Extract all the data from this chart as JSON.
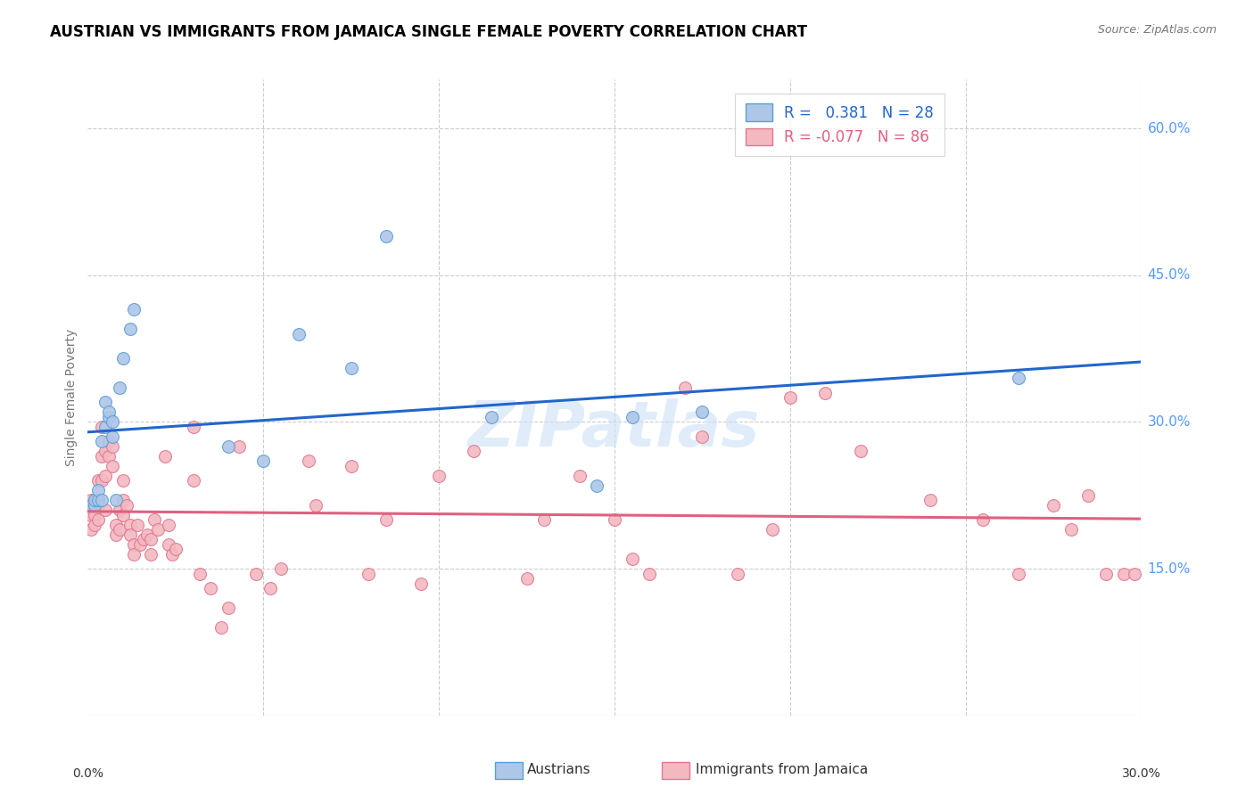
{
  "title": "AUSTRIAN VS IMMIGRANTS FROM JAMAICA SINGLE FEMALE POVERTY CORRELATION CHART",
  "source": "Source: ZipAtlas.com",
  "ylabel": "Single Female Poverty",
  "right_yticks": [
    "60.0%",
    "45.0%",
    "30.0%",
    "15.0%"
  ],
  "right_ytick_values": [
    0.6,
    0.45,
    0.3,
    0.15
  ],
  "xlim": [
    0.0,
    0.3
  ],
  "ylim": [
    0.0,
    0.65
  ],
  "color_austrians_fill": "#aec6e8",
  "color_austrians_edge": "#5a9fd4",
  "color_jamaica_fill": "#f4b8c1",
  "color_jamaica_edge": "#e07890",
  "color_line_austrians": "#2266cc",
  "color_line_jamaica": "#e06080",
  "watermark": "ZIPatlas",
  "austrians_x": [
    0.001,
    0.002,
    0.002,
    0.003,
    0.003,
    0.004,
    0.004,
    0.005,
    0.005,
    0.006,
    0.006,
    0.007,
    0.007,
    0.008,
    0.009,
    0.01,
    0.012,
    0.013,
    0.04,
    0.05,
    0.06,
    0.075,
    0.085,
    0.115,
    0.145,
    0.155,
    0.175,
    0.265
  ],
  "austrians_y": [
    0.215,
    0.215,
    0.22,
    0.22,
    0.23,
    0.22,
    0.28,
    0.295,
    0.32,
    0.305,
    0.31,
    0.285,
    0.3,
    0.22,
    0.335,
    0.365,
    0.395,
    0.415,
    0.275,
    0.26,
    0.39,
    0.355,
    0.49,
    0.305,
    0.235,
    0.305,
    0.31,
    0.345
  ],
  "jamaica_x": [
    0.001,
    0.001,
    0.001,
    0.001,
    0.002,
    0.002,
    0.002,
    0.003,
    0.003,
    0.003,
    0.003,
    0.004,
    0.004,
    0.004,
    0.005,
    0.005,
    0.005,
    0.006,
    0.006,
    0.007,
    0.007,
    0.008,
    0.008,
    0.009,
    0.009,
    0.01,
    0.01,
    0.01,
    0.011,
    0.012,
    0.012,
    0.013,
    0.013,
    0.014,
    0.015,
    0.016,
    0.017,
    0.018,
    0.018,
    0.019,
    0.02,
    0.022,
    0.023,
    0.023,
    0.024,
    0.025,
    0.03,
    0.032,
    0.035,
    0.038,
    0.04,
    0.043,
    0.048,
    0.052,
    0.055,
    0.063,
    0.075,
    0.08,
    0.085,
    0.095,
    0.1,
    0.11,
    0.125,
    0.13,
    0.14,
    0.15,
    0.155,
    0.16,
    0.17,
    0.175,
    0.185,
    0.195,
    0.2,
    0.21,
    0.22,
    0.24,
    0.255,
    0.265,
    0.275,
    0.28,
    0.285,
    0.29,
    0.295,
    0.298,
    0.03,
    0.065
  ],
  "jamaica_y": [
    0.22,
    0.215,
    0.205,
    0.19,
    0.22,
    0.205,
    0.195,
    0.22,
    0.24,
    0.215,
    0.2,
    0.24,
    0.295,
    0.265,
    0.27,
    0.245,
    0.21,
    0.28,
    0.265,
    0.275,
    0.255,
    0.195,
    0.185,
    0.21,
    0.19,
    0.24,
    0.22,
    0.205,
    0.215,
    0.195,
    0.185,
    0.175,
    0.165,
    0.195,
    0.175,
    0.18,
    0.185,
    0.18,
    0.165,
    0.2,
    0.19,
    0.265,
    0.195,
    0.175,
    0.165,
    0.17,
    0.24,
    0.145,
    0.13,
    0.09,
    0.11,
    0.275,
    0.145,
    0.13,
    0.15,
    0.26,
    0.255,
    0.145,
    0.2,
    0.135,
    0.245,
    0.27,
    0.14,
    0.2,
    0.245,
    0.2,
    0.16,
    0.145,
    0.335,
    0.285,
    0.145,
    0.19,
    0.325,
    0.33,
    0.27,
    0.22,
    0.2,
    0.145,
    0.215,
    0.19,
    0.225,
    0.145,
    0.145,
    0.145,
    0.295,
    0.215
  ],
  "legend_line1": "R =   0.381   N = 28",
  "legend_line2": "R = -0.077   N = 86",
  "legend_color1": "#2266cc",
  "legend_color2": "#e06080"
}
